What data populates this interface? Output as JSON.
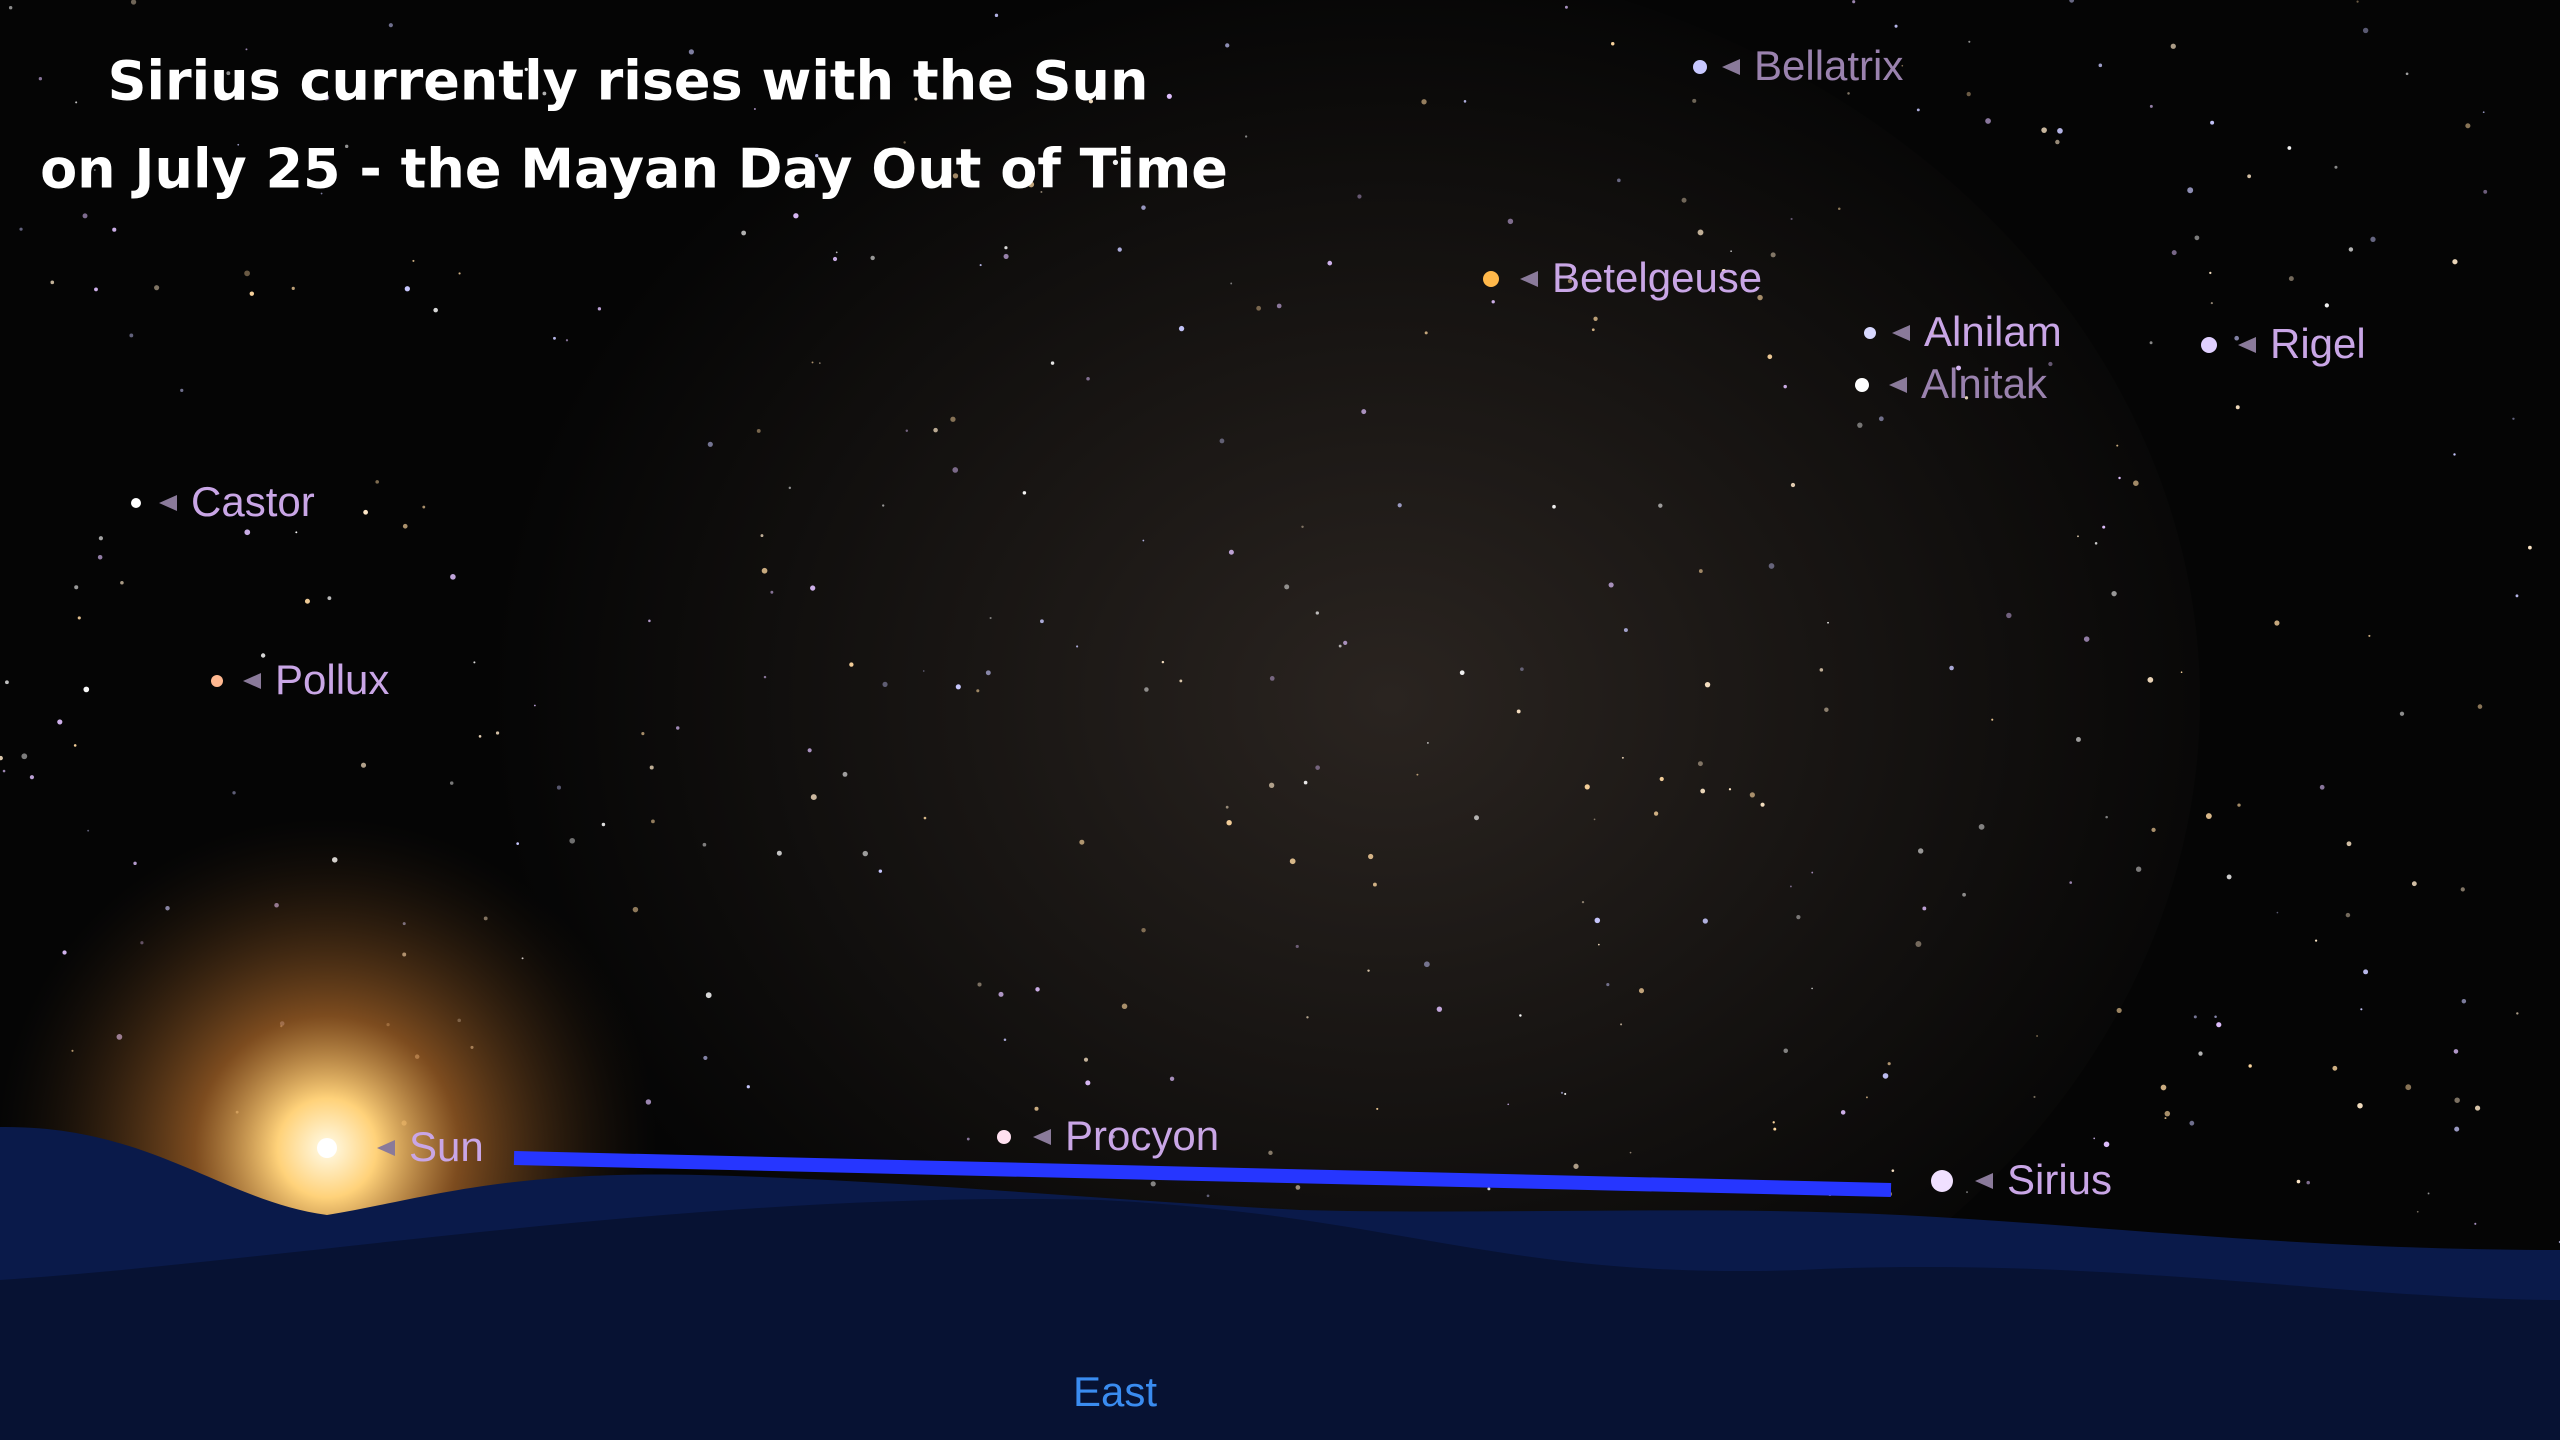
{
  "title": [
    "Sirius currently rises with the Sun",
    "on July 25 - the Mayan Day Out of Time"
  ],
  "stars": [
    {
      "label": "Bellatrix"
    },
    {
      "label": "Betelgeuse"
    },
    {
      "label": "Alnilam"
    },
    {
      "label": "Alnitak"
    },
    {
      "label": "Rigel"
    },
    {
      "label": "Castor"
    },
    {
      "label": "Pollux"
    },
    {
      "label": "Sun"
    },
    {
      "label": "Procyon"
    },
    {
      "label": "Sirius"
    }
  ],
  "direction": "East"
}
